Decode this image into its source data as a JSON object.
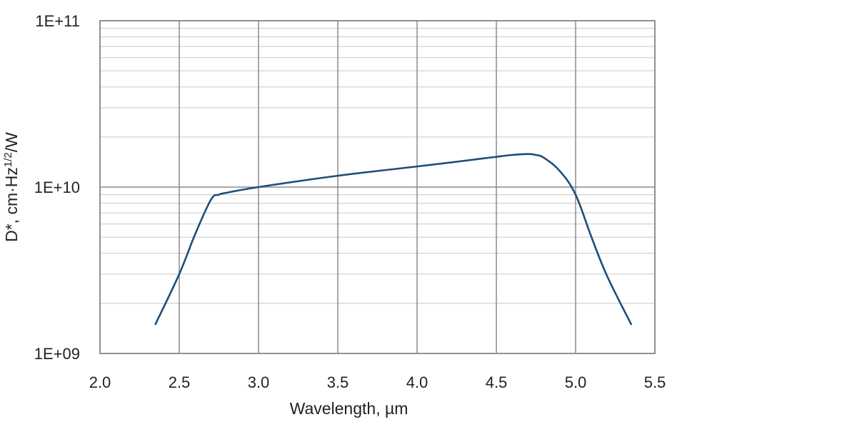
{
  "chart_data": {
    "type": "line",
    "title": "",
    "xlabel": "Wavelength, µm",
    "ylabel": {
      "base": "D*, cm·Hz",
      "superscript": "1/2",
      "suffix": "/W"
    },
    "xlim": [
      2.0,
      5.5
    ],
    "ylim": [
      1000000000,
      100000000000
    ],
    "yscale": "log",
    "grid": true,
    "xticks": [
      2.0,
      2.5,
      3.0,
      3.5,
      4.0,
      4.5,
      5.0,
      5.5
    ],
    "xtick_labels": [
      "2.0",
      "2.5",
      "3.0",
      "3.5",
      "4.0",
      "4.5",
      "5.0",
      "5.5"
    ],
    "yticks": [
      1000000000,
      10000000000,
      100000000000
    ],
    "ytick_labels": [
      "1E+09",
      "1E+10",
      "1E+11"
    ],
    "series": [
      {
        "name": "D*",
        "color": "#1f4e79",
        "x": [
          2.35,
          2.5,
          2.6,
          2.7,
          2.75,
          2.8,
          3.0,
          3.5,
          4.0,
          4.25,
          4.4,
          4.5,
          4.6,
          4.7,
          4.75,
          4.8,
          4.9,
          5.0,
          5.1,
          5.2,
          5.35
        ],
        "y": [
          1500000000.0,
          3000000000.0,
          5200000000.0,
          8400000000.0,
          9000000000.0,
          9250000000.0,
          10000000000.0,
          11700000000.0,
          13300000000.0,
          14200000000.0,
          14800000000.0,
          15200000000.0,
          15600000000.0,
          15800000000.0,
          15600000000.0,
          15000000000.0,
          12500000000.0,
          9000000000.0,
          5000000000.0,
          2900000000.0,
          1500000000.0
        ]
      }
    ]
  }
}
